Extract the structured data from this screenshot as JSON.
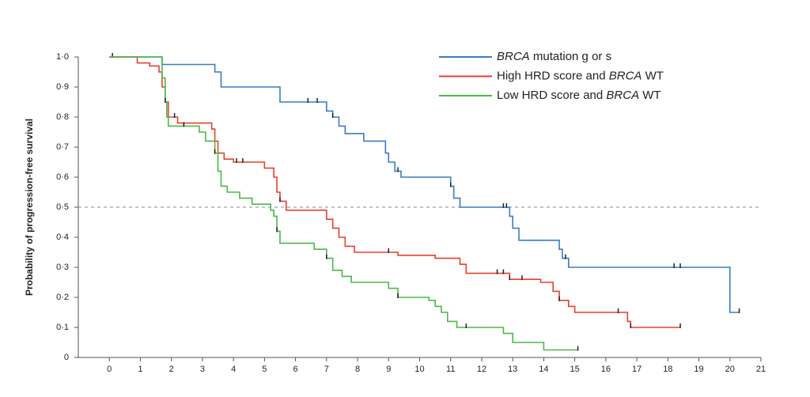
{
  "chart_data": {
    "type": "step",
    "y_label": "Probability of progression-free survival",
    "xlim": [
      -1,
      21
    ],
    "xticks": [
      0,
      1,
      2,
      3,
      4,
      5,
      6,
      7,
      8,
      9,
      10,
      11,
      12,
      13,
      14,
      15,
      16,
      17,
      18,
      19,
      20,
      21
    ],
    "ylim": [
      0,
      1
    ],
    "yticks": [
      0,
      {
        "value": 0.1,
        "label": "0·1"
      },
      {
        "value": 0.2,
        "label": "0·2"
      },
      {
        "value": 0.3,
        "label": "0·3"
      },
      {
        "value": 0.4,
        "label": "0·4"
      },
      {
        "value": 0.5,
        "label": "0·5"
      },
      {
        "value": 0.6,
        "label": "0·6"
      },
      {
        "value": 0.7,
        "label": "0·7"
      },
      {
        "value": 0.8,
        "label": "0·8"
      },
      {
        "value": 0.9,
        "label": "0·9"
      },
      {
        "value": 1,
        "label": "1·0"
      }
    ],
    "reference_line": 0.5,
    "legend": "upper right",
    "series": [
      {
        "name": "BRCA mutation g or s",
        "color": "#3a7cc4",
        "x": [
          0,
          1.7,
          3.4,
          3.6,
          5.5,
          7.0,
          7.2,
          7.4,
          7.6,
          8.2,
          8.9,
          9.0,
          9.2,
          9.4,
          11.0,
          11.1,
          11.3,
          12.9,
          13.0,
          13.2,
          14.5,
          14.6,
          14.8,
          20.0,
          20.3
        ],
        "values": [
          1.0,
          0.975,
          0.95,
          0.9,
          0.85,
          0.82,
          0.8,
          0.77,
          0.745,
          0.72,
          0.68,
          0.65,
          0.62,
          0.6,
          0.57,
          0.53,
          0.5,
          0.47,
          0.43,
          0.39,
          0.36,
          0.33,
          0.3,
          0.15,
          0.15
        ],
        "censored_x": [
          0.1,
          6.4,
          6.7,
          7.2,
          9.3,
          11.0,
          12.7,
          12.8,
          14.7,
          18.2,
          18.4,
          20.3
        ]
      },
      {
        "name": "High HRD score and BRCA WT",
        "color": "#e8402e",
        "x": [
          0,
          0.9,
          1.3,
          1.6,
          1.7,
          1.8,
          1.9,
          2.2,
          3.3,
          3.4,
          3.5,
          3.7,
          4.0,
          5.0,
          5.3,
          5.4,
          5.5,
          5.7,
          7.0,
          7.2,
          7.4,
          7.6,
          7.9,
          9.3,
          10.5,
          11.3,
          11.5,
          12.9,
          13.9,
          14.3,
          14.5,
          14.8,
          15.0,
          16.7,
          16.8,
          18.4
        ],
        "values": [
          1.0,
          0.98,
          0.97,
          0.95,
          0.9,
          0.85,
          0.8,
          0.78,
          0.76,
          0.72,
          0.68,
          0.66,
          0.65,
          0.63,
          0.6,
          0.55,
          0.52,
          0.49,
          0.46,
          0.43,
          0.4,
          0.37,
          0.35,
          0.34,
          0.33,
          0.31,
          0.28,
          0.26,
          0.25,
          0.22,
          0.19,
          0.17,
          0.15,
          0.12,
          0.1,
          0.1
        ],
        "censored_x": [
          2.1,
          4.1,
          4.3,
          5.5,
          9.0,
          12.5,
          12.7,
          12.9,
          13.3,
          14.5,
          16.4,
          16.8,
          18.4
        ]
      },
      {
        "name": "Low HRD score and BRCA WT",
        "color": "#4db848",
        "x": [
          0,
          1.7,
          1.8,
          1.85,
          1.9,
          2.9,
          3.1,
          3.4,
          3.5,
          3.6,
          3.8,
          4.2,
          4.6,
          5.2,
          5.3,
          5.4,
          5.5,
          6.6,
          7.0,
          7.2,
          7.5,
          7.8,
          9.0,
          9.3,
          10.3,
          10.5,
          10.7,
          10.9,
          11.2,
          12.7,
          13.0,
          14.0,
          15.1
        ],
        "values": [
          1.0,
          0.93,
          0.85,
          0.8,
          0.77,
          0.75,
          0.72,
          0.68,
          0.62,
          0.57,
          0.55,
          0.53,
          0.51,
          0.49,
          0.47,
          0.42,
          0.38,
          0.36,
          0.33,
          0.29,
          0.27,
          0.25,
          0.23,
          0.2,
          0.19,
          0.17,
          0.15,
          0.12,
          0.1,
          0.08,
          0.05,
          0.025,
          0.025
        ],
        "censored_x": [
          1.8,
          2.4,
          3.4,
          5.4,
          7.0,
          9.3,
          11.5,
          15.1
        ]
      }
    ]
  }
}
